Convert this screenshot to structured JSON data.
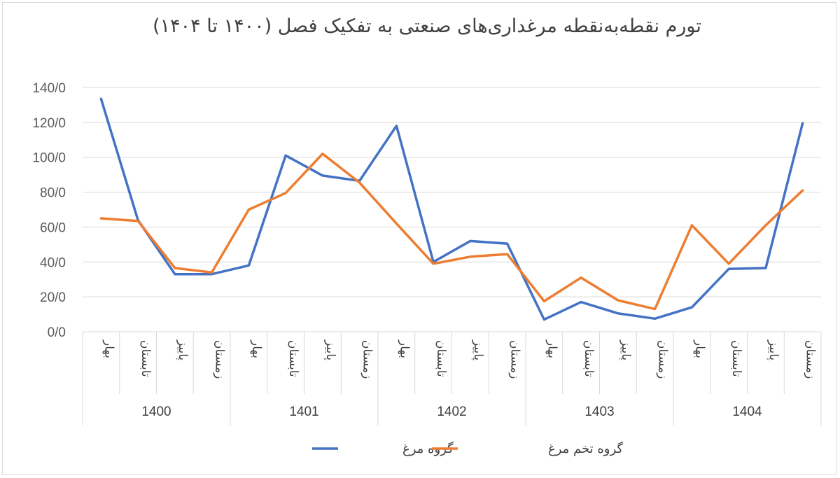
{
  "chart_data": {
    "type": "line",
    "title": "تورم نقطه‌به‌نقطه مرغداری‌های صنعتی به تفکیک فصل (۱۴۰۰ تا ۱۴۰۴)",
    "y_ticks": [
      "0/0",
      "20/0",
      "40/0",
      "60/0",
      "80/0",
      "100/0",
      "120/0",
      "140/0"
    ],
    "ylim": [
      0,
      140
    ],
    "groups": [
      "1400",
      "1401",
      "1402",
      "1403",
      "1404"
    ],
    "seasons": [
      "بهار",
      "تابستان",
      "پاییز",
      "زمستان"
    ],
    "categories": [
      "1400 بهار",
      "1400 تابستان",
      "1400 پاییز",
      "1400 زمستان",
      "1401 بهار",
      "1401 تابستان",
      "1401 پاییز",
      "1401 زمستان",
      "1402 بهار",
      "1402 تابستان",
      "1402 پاییز",
      "1402 زمستان",
      "1403 بهار",
      "1403 تابستان",
      "1403 پاییز",
      "1403 زمستان",
      "1404 بهار",
      "1404 تابستان",
      "1404 پاییز",
      "1404 زمستان"
    ],
    "series": [
      {
        "name": "گروه مرغ",
        "color": "#4472C4",
        "values": [
          133.5,
          64,
          33,
          33,
          38,
          101,
          89.5,
          86.5,
          118,
          40,
          52,
          50.5,
          7,
          17,
          10.5,
          7.5,
          14,
          36,
          36.5,
          119.5
        ]
      },
      {
        "name": "گروه تخم مرغ",
        "color": "#ED7D31",
        "values": [
          65,
          63.5,
          36.5,
          34,
          70,
          79.5,
          102,
          85.5,
          62,
          39,
          43,
          44.5,
          17.5,
          31,
          18,
          13,
          61,
          39,
          61,
          81
        ]
      }
    ],
    "grid": true,
    "legend_position": "bottom"
  }
}
